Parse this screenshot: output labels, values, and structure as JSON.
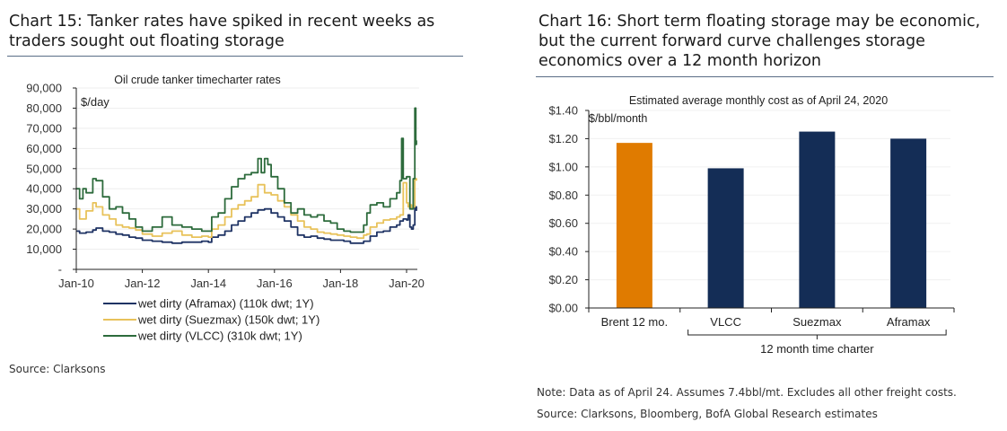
{
  "left_panel": {
    "title": "Chart 15: Tanker rates have spiked in recent weeks as traders sought out floating storage",
    "source": "Source: Clarksons"
  },
  "right_panel": {
    "title": "Chart 16: Short term floating storage may be economic, but the current forward curve challenges storage economics over a 12 month horizon",
    "note": "Note: Data as of April 24. Assumes 7.4bbl/mt. Excludes all other freight costs.",
    "source": "Source: Clarksons, Bloomberg, BofA Global Research estimates"
  },
  "chart_data": [
    {
      "type": "line",
      "title": "Oil crude tanker timecharter rates",
      "ylabel": "$/day",
      "xlabel": "",
      "ylim": [
        0,
        90000
      ],
      "xlim": [
        2010.0,
        2020.4
      ],
      "y_ticks": [
        0,
        10000,
        20000,
        30000,
        40000,
        50000,
        60000,
        70000,
        80000,
        90000
      ],
      "y_tick_labels": [
        "-",
        "10,000",
        "20,000",
        "30,000",
        "40,000",
        "50,000",
        "60,000",
        "70,000",
        "80,000",
        "90,000"
      ],
      "x_ticks": [
        2010,
        2012,
        2014,
        2016,
        2018,
        2020
      ],
      "x_tick_labels": [
        "Jan-10",
        "Jan-12",
        "Jan-14",
        "Jan-16",
        "Jan-18",
        "Jan-20"
      ],
      "grid": true,
      "legend": "bottom",
      "series": [
        {
          "name": "wet dirty (Aframax) (110k dwt; 1Y)",
          "color": "#1f3364",
          "x": [
            2010.0,
            2010.1,
            2010.3,
            2010.5,
            2010.6,
            2010.8,
            2011.0,
            2011.2,
            2011.4,
            2011.6,
            2011.8,
            2012.0,
            2012.3,
            2012.6,
            2012.9,
            2013.2,
            2013.5,
            2013.8,
            2014.0,
            2014.1,
            2014.3,
            2014.5,
            2014.7,
            2014.9,
            2015.1,
            2015.3,
            2015.5,
            2015.7,
            2015.9,
            2016.1,
            2016.3,
            2016.5,
            2016.7,
            2016.9,
            2017.1,
            2017.3,
            2017.5,
            2017.7,
            2017.9,
            2018.1,
            2018.3,
            2018.5,
            2018.7,
            2018.8,
            2018.9,
            2019.1,
            2019.3,
            2019.5,
            2019.7,
            2019.8,
            2019.9,
            2020.0,
            2020.05,
            2020.1,
            2020.15,
            2020.2,
            2020.25,
            2020.3
          ],
          "y": [
            19000,
            18000,
            18500,
            19500,
            20500,
            19000,
            18500,
            17500,
            17000,
            16000,
            15500,
            14500,
            14000,
            13500,
            13000,
            13500,
            13500,
            14000,
            13500,
            16000,
            17000,
            19000,
            22000,
            24000,
            26000,
            28000,
            29500,
            30000,
            28000,
            26000,
            24000,
            21000,
            17000,
            16000,
            16500,
            15500,
            15000,
            14500,
            14500,
            14000,
            13000,
            13000,
            14000,
            14000,
            16500,
            18500,
            19000,
            21000,
            22000,
            24000,
            25000,
            24500,
            27000,
            21000,
            20000,
            22000,
            31000,
            29000
          ]
        },
        {
          "name": "wet dirty (Suezmax) (150k dwt; 1Y)",
          "color": "#e8c25a",
          "x": [
            2010.0,
            2010.1,
            2010.3,
            2010.5,
            2010.6,
            2010.8,
            2011.0,
            2011.2,
            2011.4,
            2011.6,
            2011.8,
            2012.0,
            2012.3,
            2012.6,
            2012.9,
            2013.2,
            2013.5,
            2013.8,
            2014.0,
            2014.1,
            2014.3,
            2014.5,
            2014.7,
            2014.9,
            2015.1,
            2015.3,
            2015.5,
            2015.7,
            2015.9,
            2016.1,
            2016.3,
            2016.5,
            2016.7,
            2016.9,
            2017.1,
            2017.3,
            2017.5,
            2017.7,
            2017.9,
            2018.1,
            2018.3,
            2018.5,
            2018.7,
            2018.8,
            2018.9,
            2019.1,
            2019.3,
            2019.5,
            2019.7,
            2019.8,
            2019.9,
            2020.0,
            2020.05,
            2020.1,
            2020.15,
            2020.2,
            2020.25,
            2020.3
          ],
          "y": [
            30000,
            25000,
            29000,
            33000,
            31000,
            27000,
            25000,
            22000,
            21000,
            20500,
            19500,
            17500,
            16500,
            18000,
            19000,
            17000,
            16000,
            16500,
            16000,
            20000,
            22000,
            26000,
            30000,
            32000,
            34000,
            36000,
            42000,
            38000,
            37000,
            34000,
            31000,
            27000,
            24000,
            21000,
            20000,
            18500,
            18000,
            17500,
            17000,
            16500,
            16000,
            15500,
            17000,
            17500,
            21000,
            23000,
            24500,
            25000,
            26000,
            27000,
            43000,
            33000,
            31000,
            32000,
            30000,
            31000,
            45000,
            44000
          ]
        },
        {
          "name": "wet dirty (VLCC) (310k dwt; 1Y)",
          "color": "#2d6b3c",
          "x": [
            2010.0,
            2010.1,
            2010.2,
            2010.3,
            2010.5,
            2010.6,
            2010.8,
            2011.0,
            2011.2,
            2011.4,
            2011.6,
            2011.8,
            2012.0,
            2012.3,
            2012.6,
            2012.9,
            2013.2,
            2013.5,
            2013.8,
            2014.0,
            2014.1,
            2014.3,
            2014.5,
            2014.7,
            2014.9,
            2015.1,
            2015.3,
            2015.5,
            2015.6,
            2015.7,
            2015.8,
            2015.9,
            2016.1,
            2016.3,
            2016.5,
            2016.7,
            2016.9,
            2017.1,
            2017.3,
            2017.5,
            2017.7,
            2017.9,
            2018.1,
            2018.3,
            2018.5,
            2018.7,
            2018.8,
            2018.9,
            2019.1,
            2019.3,
            2019.5,
            2019.7,
            2019.8,
            2019.85,
            2019.9,
            2020.0,
            2020.1,
            2020.15,
            2020.2,
            2020.25,
            2020.28,
            2020.3
          ],
          "y": [
            40000,
            35000,
            40000,
            38000,
            45000,
            44000,
            36000,
            30000,
            31000,
            28000,
            25000,
            21000,
            19000,
            21000,
            26000,
            22000,
            21000,
            20000,
            19000,
            19000,
            26000,
            28000,
            35000,
            41000,
            45000,
            47000,
            48000,
            55000,
            48000,
            55000,
            52000,
            46000,
            40000,
            33000,
            28000,
            30000,
            27000,
            26000,
            27000,
            24000,
            23000,
            20000,
            19000,
            18500,
            18500,
            22000,
            28000,
            32000,
            33000,
            31000,
            35000,
            38000,
            44000,
            65000,
            45000,
            46000,
            30000,
            30000,
            45000,
            80000,
            62000,
            64000
          ]
        }
      ]
    },
    {
      "type": "bar",
      "title": "Estimated average monthly cost as of April 24, 2020",
      "ylabel": "$/bbl/month",
      "xlabel": "",
      "ylim": [
        0,
        1.4
      ],
      "y_ticks": [
        0,
        0.2,
        0.4,
        0.6,
        0.8,
        1.0,
        1.2,
        1.4
      ],
      "y_tick_labels": [
        "$0.00",
        "$0.20",
        "$0.40",
        "$0.60",
        "$0.80",
        "$1.00",
        "$1.20",
        "$1.40"
      ],
      "grid": true,
      "categories": [
        "Brent 12 mo.",
        "VLCC",
        "Suezmax",
        "Aframax"
      ],
      "values": [
        1.17,
        0.99,
        1.25,
        1.2
      ],
      "colors": [
        "#e07b00",
        "#142d56",
        "#142d56",
        "#142d56"
      ],
      "group_annotation": {
        "label": "12 month time charter",
        "spans": [
          "VLCC",
          "Suezmax",
          "Aframax"
        ]
      }
    }
  ]
}
